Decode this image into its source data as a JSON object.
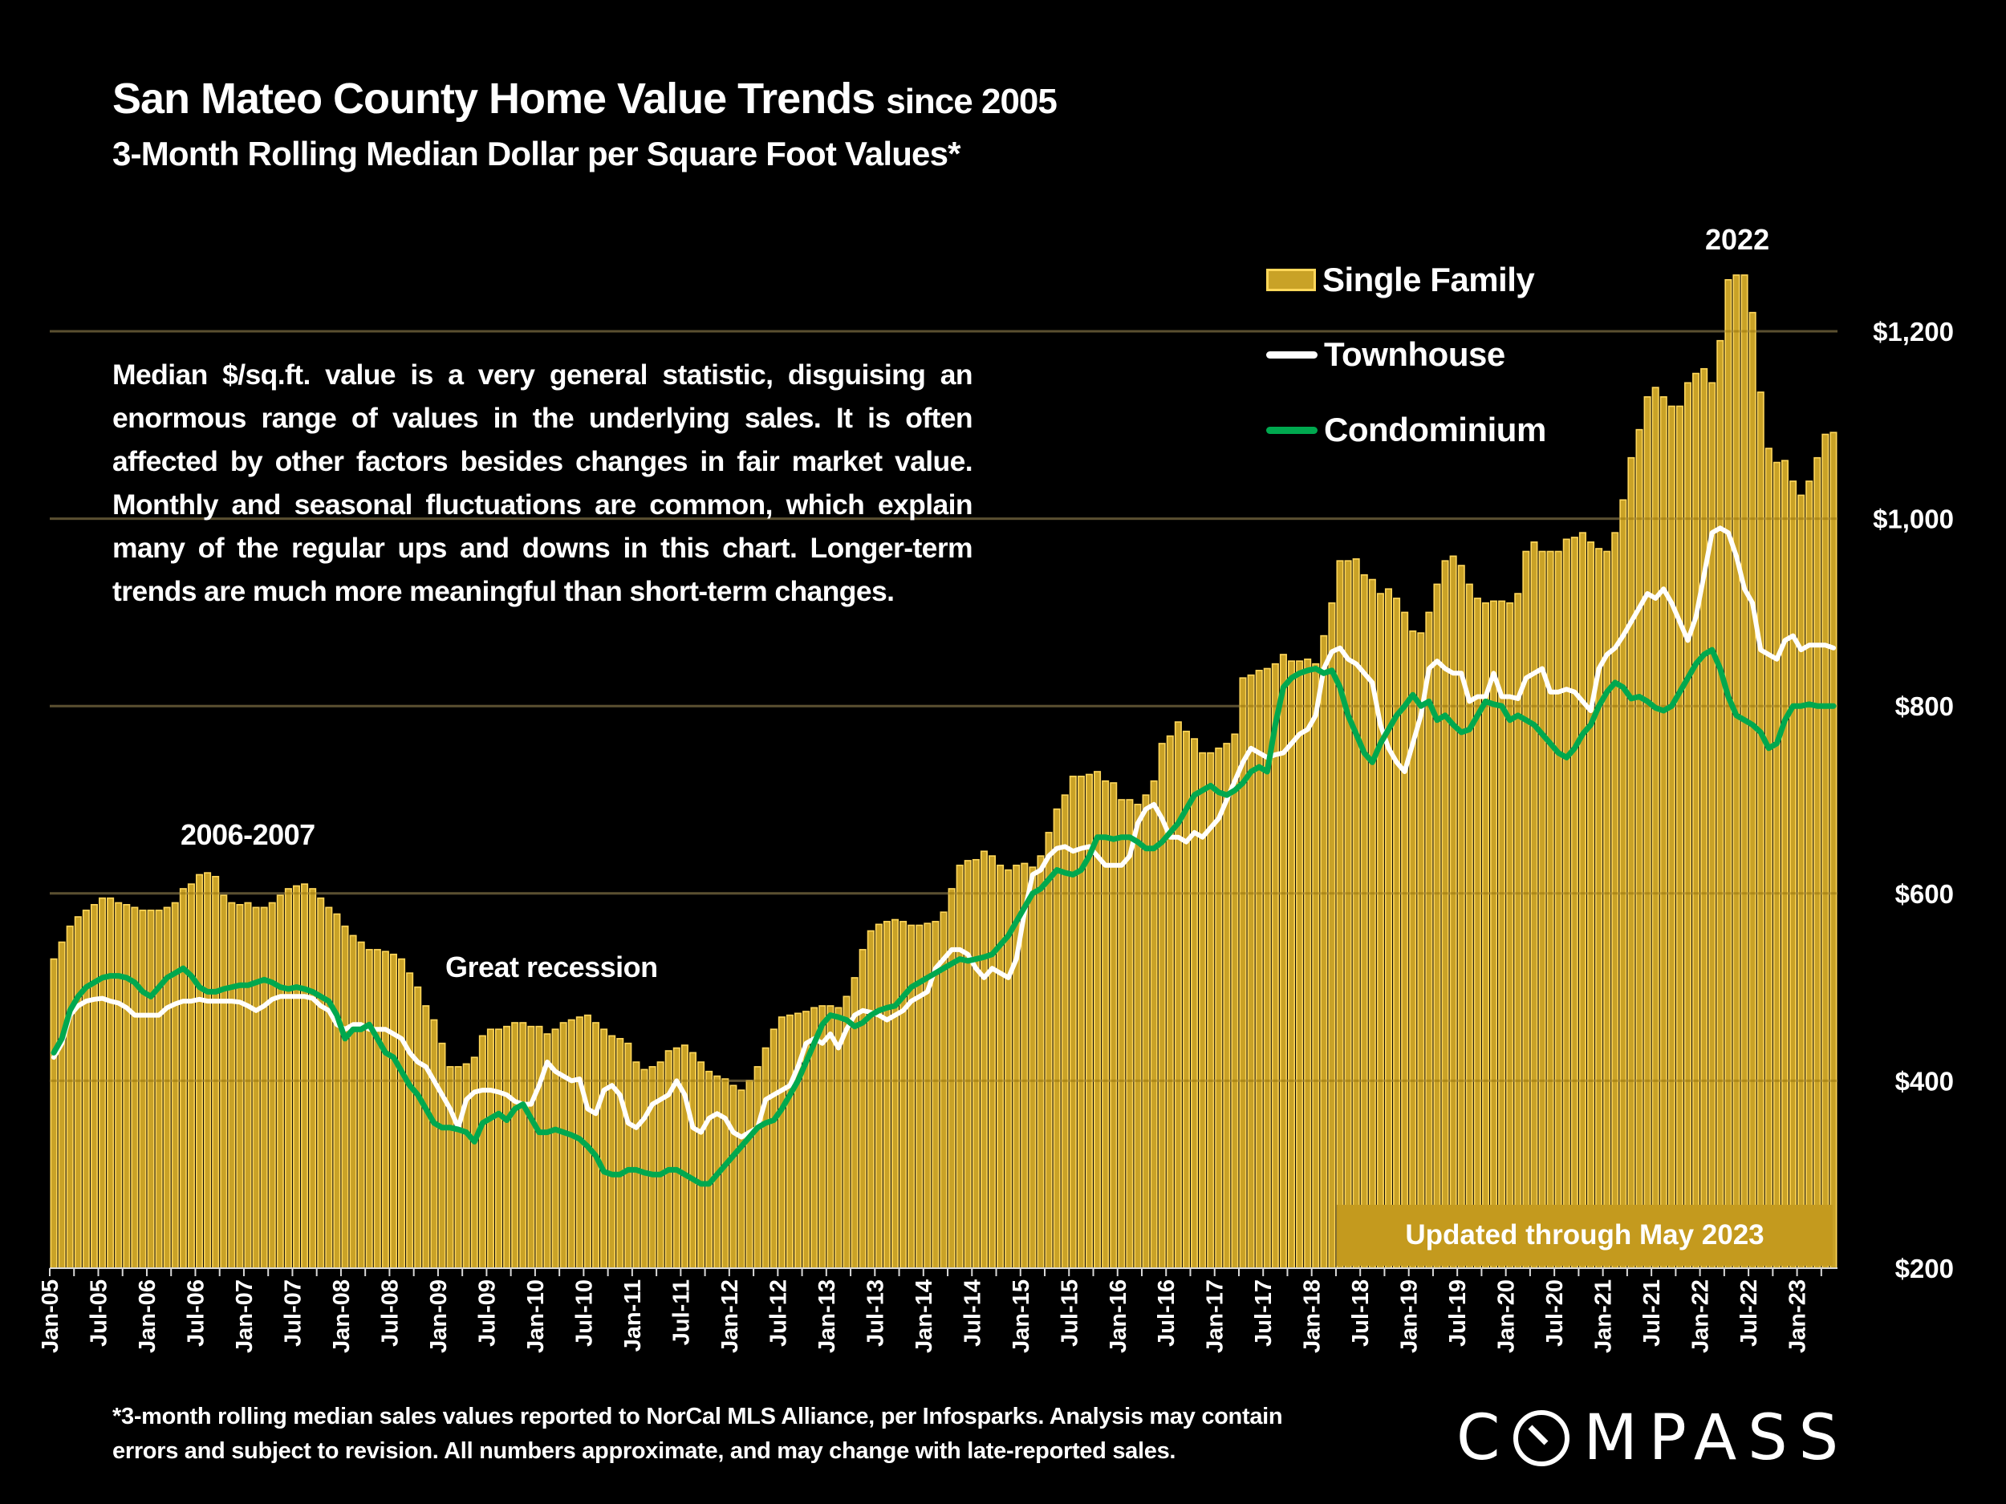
{
  "header": {
    "title": "San Mateo County Home Value Trends",
    "title_suffix": "since 2005",
    "subtitle": "3-Month Rolling Median Dollar per Square Foot Values*"
  },
  "note": "Median $/sq.ft. value is a very general statistic, disguising an enormous range of values in the underlying sales. It is often affected by other factors besides changes in fair market value. Monthly and seasonal fluctuations are common, which explain many of the regular ups and downs in this chart. Longer-term trends are much more meaningful than short-term changes.",
  "annotations": {
    "peak_2022": "2022",
    "peak_2006": "2006-2007",
    "recession": "Great recession",
    "updated": "Updated through May 2023"
  },
  "footnote": {
    "line1": "*3-month rolling median sales values reported to NorCal MLS Alliance, per Infosparks. Analysis may contain",
    "line2": "errors and subject to revision. All numbers approximate, and may change with late-reported sales."
  },
  "logo": {
    "text": "COMPASS"
  },
  "colors": {
    "single_family": "#c9a227",
    "single_family_edge": "#ffd75a",
    "townhouse": "#ffffff",
    "condominium": "#00a84f",
    "grid": "#4a4a4a",
    "background": "#000000"
  },
  "chart_data": {
    "type": "bar",
    "title": "San Mateo County Home Value Trends since 2005",
    "subtitle": "3-Month Rolling Median Dollar per Square Foot Values*",
    "x_start": "Jan-05",
    "x_end": "May-23",
    "x_frequency": "monthly",
    "x_tick_labels": [
      "Jan-05",
      "Jul-05",
      "Jan-06",
      "Jul-06",
      "Jan-07",
      "Jul-07",
      "Jan-08",
      "Jul-08",
      "Jan-09",
      "Jul-09",
      "Jan-10",
      "Jul-10",
      "Jan-11",
      "Jul-11",
      "Jan-12",
      "Jul-12",
      "Jan-13",
      "Jul-13",
      "Jan-14",
      "Jul-14",
      "Jan-15",
      "Jul-15",
      "Jan-16",
      "Jul-16",
      "Jan-17",
      "Jul-17",
      "Jan-18",
      "Jul-18",
      "Jan-19",
      "Jul-19",
      "Jan-20",
      "Jul-20",
      "Jan-21",
      "Jul-21",
      "Jan-22",
      "Jul-22",
      "Jan-23"
    ],
    "y_ticks": [
      200,
      400,
      600,
      800,
      1000,
      1200
    ],
    "y_tick_labels": [
      "$200",
      "$400",
      "$600",
      "$800",
      "$1,000",
      "$1,200"
    ],
    "ylim": [
      200,
      1300
    ],
    "y_axis_side": "right",
    "grid": true,
    "legend_position": "top-right",
    "series": [
      {
        "name": "Single Family",
        "type": "bar",
        "values": [
          530,
          548,
          565,
          575,
          582,
          588,
          595,
          595,
          590,
          588,
          585,
          582,
          582,
          582,
          585,
          590,
          605,
          610,
          620,
          622,
          618,
          598,
          590,
          588,
          590,
          585,
          585,
          590,
          598,
          605,
          608,
          610,
          605,
          595,
          585,
          578,
          565,
          555,
          548,
          540,
          540,
          538,
          535,
          530,
          515,
          500,
          480,
          465,
          440,
          415,
          415,
          418,
          425,
          448,
          455,
          455,
          458,
          462,
          462,
          458,
          458,
          450,
          455,
          462,
          465,
          468,
          470,
          462,
          455,
          448,
          445,
          440,
          420,
          412,
          415,
          420,
          432,
          435,
          438,
          430,
          420,
          410,
          405,
          402,
          395,
          390,
          400,
          415,
          435,
          455,
          468,
          470,
          472,
          474,
          478,
          480,
          480,
          478,
          490,
          510,
          540,
          560,
          567,
          570,
          572,
          570,
          566,
          566,
          568,
          570,
          580,
          605,
          630,
          635,
          636,
          645,
          640,
          630,
          625,
          630,
          632,
          628,
          640,
          665,
          690,
          705,
          725,
          725,
          727,
          730,
          720,
          718,
          700,
          700,
          695,
          705,
          720,
          760,
          768,
          783,
          773,
          765,
          750,
          750,
          755,
          760,
          770,
          830,
          833,
          838,
          840,
          845,
          855,
          848,
          848,
          850,
          845,
          875,
          910,
          955,
          955,
          957,
          940,
          935,
          920,
          925,
          915,
          900,
          880,
          878,
          900,
          930,
          955,
          960,
          950,
          930,
          915,
          910,
          912,
          912,
          910,
          920,
          965,
          975,
          965,
          965,
          965,
          978,
          980,
          985,
          975,
          968,
          965,
          985,
          1020,
          1065,
          1095,
          1130,
          1140,
          1130,
          1120,
          1120,
          1145,
          1155,
          1160,
          1145,
          1190,
          1255,
          1260,
          1260,
          1220,
          1135,
          1075,
          1060,
          1062,
          1040,
          1025,
          1040,
          1065,
          1090,
          1092
        ]
      },
      {
        "name": "Townhouse",
        "type": "line",
        "values": [
          425,
          440,
          470,
          480,
          485,
          487,
          488,
          485,
          483,
          478,
          470,
          470,
          470,
          470,
          478,
          482,
          485,
          485,
          487,
          485,
          485,
          485,
          485,
          484,
          480,
          475,
          480,
          487,
          490,
          490,
          490,
          490,
          488,
          480,
          475,
          460,
          455,
          460,
          460,
          455,
          455,
          455,
          450,
          445,
          430,
          420,
          415,
          400,
          385,
          370,
          350,
          380,
          388,
          390,
          390,
          388,
          385,
          378,
          375,
          375,
          395,
          420,
          410,
          405,
          400,
          402,
          370,
          365,
          390,
          395,
          385,
          355,
          350,
          360,
          375,
          380,
          385,
          400,
          385,
          350,
          345,
          360,
          365,
          360,
          345,
          340,
          345,
          350,
          380,
          385,
          390,
          395,
          415,
          440,
          445,
          440,
          450,
          435,
          455,
          470,
          475,
          473,
          470,
          465,
          470,
          475,
          485,
          490,
          495,
          520,
          530,
          540,
          540,
          535,
          520,
          510,
          520,
          515,
          510,
          530,
          580,
          620,
          625,
          640,
          648,
          650,
          645,
          648,
          650,
          640,
          630,
          630,
          630,
          640,
          675,
          690,
          695,
          680,
          660,
          660,
          655,
          665,
          660,
          670,
          680,
          700,
          720,
          740,
          755,
          750,
          745,
          748,
          750,
          760,
          770,
          775,
          790,
          840,
          858,
          862,
          850,
          845,
          835,
          825,
          780,
          755,
          740,
          730,
          760,
          790,
          840,
          848,
          840,
          835,
          835,
          805,
          810,
          810,
          835,
          810,
          810,
          808,
          830,
          835,
          840,
          815,
          815,
          818,
          815,
          805,
          795,
          840,
          855,
          862,
          875,
          890,
          905,
          920,
          915,
          925,
          910,
          890,
          870,
          895,
          940,
          985,
          990,
          985,
          960,
          925,
          910,
          860,
          855,
          850,
          870,
          875,
          860,
          865,
          865,
          865,
          862
        ]
      },
      {
        "name": "Condominium",
        "type": "line",
        "values": [
          430,
          445,
          475,
          490,
          500,
          505,
          510,
          512,
          512,
          510,
          505,
          495,
          490,
          500,
          510,
          515,
          520,
          512,
          500,
          495,
          495,
          498,
          500,
          502,
          502,
          505,
          508,
          505,
          500,
          498,
          500,
          498,
          495,
          490,
          485,
          470,
          445,
          455,
          455,
          460,
          445,
          430,
          425,
          410,
          395,
          385,
          370,
          355,
          350,
          350,
          348,
          345,
          335,
          355,
          360,
          365,
          358,
          370,
          375,
          360,
          345,
          345,
          348,
          345,
          342,
          338,
          330,
          320,
          303,
          300,
          300,
          305,
          305,
          302,
          300,
          300,
          305,
          305,
          300,
          295,
          290,
          290,
          300,
          310,
          320,
          330,
          340,
          350,
          355,
          358,
          370,
          385,
          400,
          420,
          440,
          460,
          470,
          468,
          465,
          458,
          462,
          470,
          475,
          478,
          480,
          490,
          500,
          505,
          510,
          515,
          520,
          525,
          530,
          528,
          530,
          532,
          535,
          545,
          555,
          570,
          585,
          600,
          605,
          615,
          625,
          622,
          620,
          625,
          640,
          660,
          660,
          658,
          660,
          660,
          655,
          648,
          648,
          655,
          665,
          675,
          690,
          705,
          710,
          715,
          708,
          705,
          710,
          718,
          730,
          735,
          730,
          780,
          820,
          830,
          835,
          838,
          840,
          835,
          838,
          820,
          790,
          770,
          750,
          740,
          760,
          775,
          790,
          800,
          812,
          800,
          805,
          785,
          790,
          780,
          772,
          775,
          790,
          805,
          802,
          800,
          785,
          790,
          785,
          780,
          770,
          760,
          750,
          745,
          755,
          770,
          780,
          800,
          815,
          825,
          820,
          808,
          810,
          805,
          798,
          795,
          800,
          815,
          830,
          845,
          855,
          860,
          840,
          810,
          790,
          785,
          780,
          772,
          755,
          760,
          785,
          800,
          800,
          802,
          800,
          800,
          800
        ]
      }
    ]
  }
}
